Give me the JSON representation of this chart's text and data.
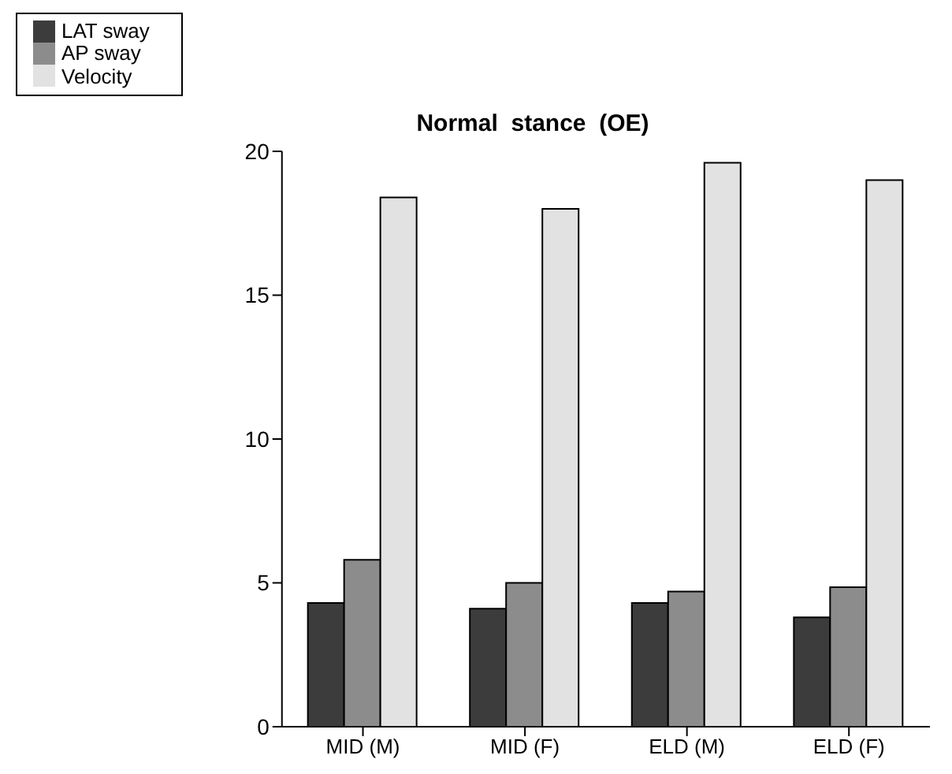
{
  "chart_data": {
    "type": "bar",
    "title": "Normal  stance  (OE)",
    "categories": [
      "MID (M)",
      "MID (F)",
      "ELD (M)",
      "ELD (F)"
    ],
    "series": [
      {
        "name": "LAT sway",
        "color": "#3c3c3c",
        "values": [
          4.3,
          4.1,
          4.3,
          3.8
        ]
      },
      {
        "name": "AP sway",
        "color": "#8c8c8c",
        "values": [
          5.8,
          5.0,
          4.7,
          4.85
        ]
      },
      {
        "name": "Velocity",
        "color": "#e2e2e2",
        "values": [
          18.4,
          18.0,
          19.6,
          19.0
        ]
      }
    ],
    "ylim": [
      0,
      20
    ],
    "yticks": [
      0,
      5,
      10,
      15,
      20
    ],
    "grid": false,
    "legend": "top left"
  }
}
